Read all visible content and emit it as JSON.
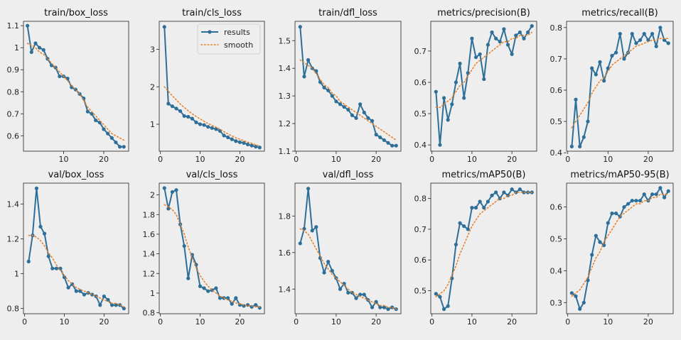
{
  "legend": {
    "results_label": "results",
    "smooth_label": "smooth"
  },
  "colors": {
    "background": "#eeeeee",
    "results": "#2e6f99",
    "smooth": "#e8822a",
    "axes": "#222222"
  },
  "chart_data": [
    {
      "type": "line",
      "title": "train/box_loss",
      "x": [
        1,
        2,
        3,
        4,
        5,
        6,
        7,
        8,
        9,
        10,
        11,
        12,
        13,
        14,
        15,
        16,
        17,
        18,
        19,
        20,
        21,
        22,
        23,
        24,
        25
      ],
      "results": [
        1.1,
        0.98,
        1.02,
        1.0,
        0.99,
        0.95,
        0.92,
        0.91,
        0.87,
        0.87,
        0.86,
        0.82,
        0.81,
        0.79,
        0.77,
        0.71,
        0.7,
        0.67,
        0.66,
        0.63,
        0.61,
        0.59,
        0.57,
        0.55,
        0.55
      ],
      "smooth": [
        1.02,
        1.01,
        1.0,
        0.98,
        0.97,
        0.95,
        0.93,
        0.91,
        0.89,
        0.87,
        0.85,
        0.83,
        0.81,
        0.79,
        0.76,
        0.73,
        0.71,
        0.69,
        0.67,
        0.65,
        0.63,
        0.61,
        0.6,
        0.59,
        0.58
      ],
      "xticks": [
        10,
        20
      ],
      "yticks": [
        0.6,
        0.7,
        0.8,
        0.9,
        1.0,
        1.1
      ],
      "xlim": [
        0,
        26.2
      ],
      "ylim": [
        0.53,
        1.12
      ]
    },
    {
      "type": "line",
      "title": "train/cls_loss",
      "x": [
        1,
        2,
        3,
        4,
        5,
        6,
        7,
        8,
        9,
        10,
        11,
        12,
        13,
        14,
        15,
        16,
        17,
        18,
        19,
        20,
        21,
        22,
        23,
        24,
        25
      ],
      "results": [
        3.6,
        1.55,
        1.48,
        1.42,
        1.35,
        1.22,
        1.2,
        1.15,
        1.05,
        1.0,
        0.98,
        0.93,
        0.9,
        0.87,
        0.82,
        0.7,
        0.65,
        0.6,
        0.55,
        0.52,
        0.5,
        0.46,
        0.43,
        0.4,
        0.38
      ],
      "smooth": [
        2.0,
        1.88,
        1.76,
        1.65,
        1.54,
        1.45,
        1.36,
        1.28,
        1.21,
        1.14,
        1.08,
        1.02,
        0.97,
        0.92,
        0.87,
        0.8,
        0.74,
        0.69,
        0.64,
        0.6,
        0.56,
        0.52,
        0.49,
        0.45,
        0.42
      ],
      "xticks": [
        0,
        10,
        20
      ],
      "yticks": [
        1,
        2,
        3
      ],
      "xlim": [
        -0.3,
        26.2
      ],
      "ylim": [
        0.28,
        3.75
      ]
    },
    {
      "type": "line",
      "title": "train/dfl_loss",
      "x": [
        1,
        2,
        3,
        4,
        5,
        6,
        7,
        8,
        9,
        10,
        11,
        12,
        13,
        14,
        15,
        16,
        17,
        18,
        19,
        20,
        21,
        22,
        23,
        24,
        25
      ],
      "results": [
        1.55,
        1.37,
        1.43,
        1.4,
        1.39,
        1.35,
        1.33,
        1.32,
        1.3,
        1.28,
        1.27,
        1.26,
        1.25,
        1.23,
        1.22,
        1.27,
        1.24,
        1.22,
        1.21,
        1.16,
        1.15,
        1.14,
        1.13,
        1.12,
        1.12
      ],
      "smooth": [
        1.43,
        1.42,
        1.41,
        1.4,
        1.38,
        1.36,
        1.34,
        1.33,
        1.31,
        1.3,
        1.28,
        1.27,
        1.26,
        1.25,
        1.24,
        1.23,
        1.22,
        1.21,
        1.2,
        1.19,
        1.18,
        1.17,
        1.16,
        1.15,
        1.14
      ],
      "xticks": [
        0,
        10,
        20
      ],
      "yticks": [
        1.1,
        1.2,
        1.3,
        1.4,
        1.5
      ],
      "xlim": [
        -0.3,
        26.2
      ],
      "ylim": [
        1.1,
        1.57
      ]
    },
    {
      "type": "line",
      "title": "metrics/precision(B)",
      "x": [
        1,
        2,
        3,
        4,
        5,
        6,
        7,
        8,
        9,
        10,
        11,
        12,
        13,
        14,
        15,
        16,
        17,
        18,
        19,
        20,
        21,
        22,
        23,
        24,
        25
      ],
      "results": [
        0.57,
        0.4,
        0.55,
        0.48,
        0.53,
        0.6,
        0.66,
        0.55,
        0.63,
        0.74,
        0.68,
        0.69,
        0.61,
        0.72,
        0.76,
        0.74,
        0.73,
        0.77,
        0.72,
        0.69,
        0.75,
        0.76,
        0.74,
        0.76,
        0.78
      ],
      "smooth": [
        0.52,
        0.52,
        0.53,
        0.54,
        0.55,
        0.57,
        0.59,
        0.6,
        0.62,
        0.64,
        0.66,
        0.67,
        0.68,
        0.69,
        0.7,
        0.71,
        0.72,
        0.73,
        0.73,
        0.74,
        0.74,
        0.75,
        0.75,
        0.75,
        0.76
      ],
      "xticks": [
        0,
        10,
        20
      ],
      "yticks": [
        0.4,
        0.5,
        0.6,
        0.7
      ],
      "xlim": [
        -0.3,
        26.2
      ],
      "ylim": [
        0.38,
        0.795
      ]
    },
    {
      "type": "line",
      "title": "metrics/recall(B)",
      "x": [
        1,
        2,
        3,
        4,
        5,
        6,
        7,
        8,
        9,
        10,
        11,
        12,
        13,
        14,
        15,
        16,
        17,
        18,
        19,
        20,
        21,
        22,
        23,
        24,
        25
      ],
      "results": [
        0.42,
        0.57,
        0.42,
        0.45,
        0.5,
        0.67,
        0.65,
        0.69,
        0.63,
        0.67,
        0.71,
        0.72,
        0.78,
        0.7,
        0.72,
        0.78,
        0.75,
        0.76,
        0.78,
        0.76,
        0.78,
        0.74,
        0.8,
        0.76,
        0.75
      ],
      "smooth": [
        0.48,
        0.5,
        0.52,
        0.54,
        0.56,
        0.59,
        0.61,
        0.63,
        0.64,
        0.66,
        0.68,
        0.69,
        0.7,
        0.71,
        0.72,
        0.73,
        0.74,
        0.745,
        0.75,
        0.755,
        0.76,
        0.76,
        0.765,
        0.765,
        0.765
      ],
      "xticks": [
        0,
        10,
        20
      ],
      "yticks": [
        0.4,
        0.5,
        0.6,
        0.7,
        0.8
      ],
      "xlim": [
        -0.3,
        26.2
      ],
      "ylim": [
        0.405,
        0.82
      ]
    },
    {
      "type": "line",
      "title": "val/box_loss",
      "x": [
        1,
        2,
        3,
        4,
        5,
        6,
        7,
        8,
        9,
        10,
        11,
        12,
        13,
        14,
        15,
        16,
        17,
        18,
        19,
        20,
        21,
        22,
        23,
        24,
        25
      ],
      "results": [
        1.07,
        1.22,
        1.49,
        1.27,
        1.23,
        1.1,
        1.03,
        1.03,
        1.03,
        0.98,
        0.92,
        0.94,
        0.9,
        0.9,
        0.88,
        0.89,
        0.88,
        0.87,
        0.82,
        0.87,
        0.85,
        0.82,
        0.82,
        0.82,
        0.8
      ],
      "smooth": [
        1.22,
        1.22,
        1.21,
        1.19,
        1.16,
        1.12,
        1.09,
        1.05,
        1.02,
        0.99,
        0.96,
        0.94,
        0.92,
        0.91,
        0.9,
        0.89,
        0.88,
        0.87,
        0.86,
        0.85,
        0.84,
        0.83,
        0.83,
        0.82,
        0.81
      ],
      "xticks": [
        0,
        10,
        20
      ],
      "yticks": [
        0.8,
        1.0,
        1.2,
        1.4
      ],
      "xlim": [
        -0.3,
        26.2
      ],
      "ylim": [
        0.77,
        1.52
      ]
    },
    {
      "type": "line",
      "title": "val/cls_loss",
      "x": [
        1,
        2,
        3,
        4,
        5,
        6,
        7,
        8,
        9,
        10,
        11,
        12,
        13,
        14,
        15,
        16,
        17,
        18,
        19,
        20,
        21,
        22,
        23,
        24,
        25
      ],
      "results": [
        2.07,
        1.86,
        2.03,
        2.05,
        1.7,
        1.48,
        1.15,
        1.39,
        1.29,
        1.07,
        1.05,
        1.02,
        1.03,
        1.05,
        0.95,
        0.95,
        0.95,
        0.89,
        0.95,
        0.88,
        0.87,
        0.88,
        0.86,
        0.88,
        0.85
      ],
      "smooth": [
        1.9,
        1.88,
        1.85,
        1.8,
        1.7,
        1.6,
        1.47,
        1.36,
        1.26,
        1.18,
        1.12,
        1.07,
        1.03,
        1.0,
        0.97,
        0.95,
        0.93,
        0.92,
        0.9,
        0.89,
        0.88,
        0.87,
        0.87,
        0.86,
        0.86
      ],
      "xticks": [
        0,
        10,
        20
      ],
      "yticks": [
        0.8,
        1.0,
        1.2,
        1.4,
        1.6,
        1.8,
        2.0
      ],
      "xlim": [
        -0.3,
        26.2
      ],
      "ylim": [
        0.79,
        2.12
      ]
    },
    {
      "type": "line",
      "title": "val/dfl_loss",
      "x": [
        1,
        2,
        3,
        4,
        5,
        6,
        7,
        8,
        9,
        10,
        11,
        12,
        13,
        14,
        15,
        16,
        17,
        18,
        19,
        20,
        21,
        22,
        23,
        24,
        25
      ],
      "results": [
        1.65,
        1.73,
        1.95,
        1.72,
        1.74,
        1.57,
        1.49,
        1.55,
        1.5,
        1.46,
        1.4,
        1.43,
        1.38,
        1.38,
        1.35,
        1.37,
        1.37,
        1.34,
        1.3,
        1.33,
        1.3,
        1.3,
        1.29,
        1.3,
        1.29
      ],
      "smooth": [
        1.73,
        1.72,
        1.7,
        1.66,
        1.62,
        1.58,
        1.54,
        1.51,
        1.48,
        1.46,
        1.44,
        1.42,
        1.4,
        1.38,
        1.37,
        1.36,
        1.35,
        1.34,
        1.33,
        1.32,
        1.31,
        1.31,
        1.3,
        1.3,
        1.29
      ],
      "xticks": [
        0,
        10,
        20
      ],
      "yticks": [
        1.4,
        1.6,
        1.8
      ],
      "xlim": [
        -0.3,
        26.2
      ],
      "ylim": [
        1.265,
        1.98
      ]
    },
    {
      "type": "line",
      "title": "metrics/mAP50(B)",
      "x": [
        1,
        2,
        3,
        4,
        5,
        6,
        7,
        8,
        9,
        10,
        11,
        12,
        13,
        14,
        15,
        16,
        17,
        18,
        19,
        20,
        21,
        22,
        23,
        24,
        25
      ],
      "results": [
        0.49,
        0.48,
        0.44,
        0.45,
        0.54,
        0.65,
        0.72,
        0.71,
        0.7,
        0.77,
        0.77,
        0.79,
        0.77,
        0.79,
        0.81,
        0.82,
        0.8,
        0.82,
        0.81,
        0.83,
        0.82,
        0.83,
        0.82,
        0.82,
        0.82
      ],
      "smooth": [
        0.48,
        0.49,
        0.5,
        0.52,
        0.55,
        0.58,
        0.62,
        0.65,
        0.68,
        0.71,
        0.73,
        0.75,
        0.76,
        0.77,
        0.78,
        0.79,
        0.8,
        0.8,
        0.81,
        0.81,
        0.82,
        0.82,
        0.82,
        0.82,
        0.82
      ],
      "xticks": [
        0,
        10,
        20
      ],
      "yticks": [
        0.5,
        0.6,
        0.7,
        0.8
      ],
      "xlim": [
        -0.3,
        26.2
      ],
      "ylim": [
        0.425,
        0.85
      ]
    },
    {
      "type": "line",
      "title": "metrics/mAP50-95(B)",
      "x": [
        1,
        2,
        3,
        4,
        5,
        6,
        7,
        8,
        9,
        10,
        11,
        12,
        13,
        14,
        15,
        16,
        17,
        18,
        19,
        20,
        21,
        22,
        23,
        24,
        25
      ],
      "results": [
        0.33,
        0.32,
        0.28,
        0.3,
        0.37,
        0.45,
        0.51,
        0.49,
        0.48,
        0.55,
        0.58,
        0.58,
        0.57,
        0.6,
        0.61,
        0.62,
        0.62,
        0.62,
        0.64,
        0.62,
        0.64,
        0.64,
        0.66,
        0.63,
        0.65
      ],
      "smooth": [
        0.32,
        0.33,
        0.34,
        0.36,
        0.38,
        0.41,
        0.44,
        0.46,
        0.49,
        0.51,
        0.53,
        0.55,
        0.57,
        0.58,
        0.59,
        0.6,
        0.61,
        0.61,
        0.62,
        0.62,
        0.63,
        0.63,
        0.64,
        0.64,
        0.64
      ],
      "xticks": [
        0,
        10,
        20
      ],
      "yticks": [
        0.3,
        0.4,
        0.5,
        0.6
      ],
      "xlim": [
        -0.3,
        26.2
      ],
      "ylim": [
        0.265,
        0.675
      ]
    }
  ]
}
